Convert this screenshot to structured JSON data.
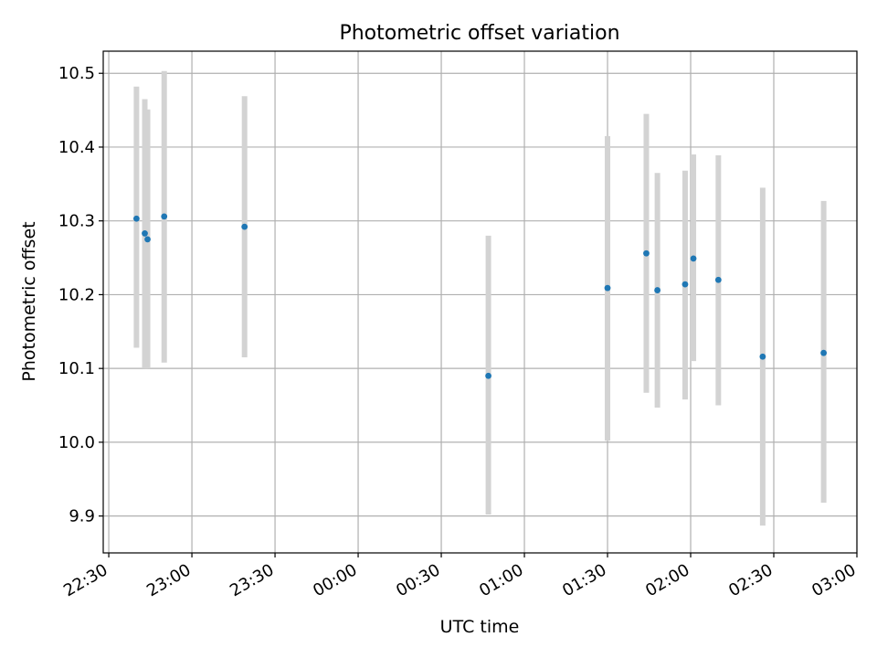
{
  "chart_data": {
    "type": "scatter",
    "title": "Photometric offset variation",
    "xlabel": "UTC time",
    "ylabel": "Photometric offset",
    "x_ticks": [
      "22:30",
      "23:00",
      "23:30",
      "00:00",
      "00:30",
      "01:00",
      "01:30",
      "02:00",
      "02:30",
      "03:00"
    ],
    "y_ticks": [
      "9.9",
      "10.0",
      "10.1",
      "10.2",
      "10.3",
      "10.4",
      "10.5"
    ],
    "ylim": [
      9.85,
      10.53
    ],
    "xlim": [
      "22:28",
      "03:00"
    ],
    "grid": true,
    "colors": {
      "point": "#1f77b4",
      "errorbar": "#d3d3d3",
      "grid": "#b0b0b0"
    },
    "points": [
      {
        "x": "22:40",
        "y": 10.303,
        "low": 10.128,
        "high": 10.482
      },
      {
        "x": "22:43",
        "y": 10.283,
        "low": 10.1,
        "high": 10.465
      },
      {
        "x": "22:44",
        "y": 10.275,
        "low": 10.1,
        "high": 10.451
      },
      {
        "x": "22:50",
        "y": 10.306,
        "low": 10.108,
        "high": 10.503
      },
      {
        "x": "23:19",
        "y": 10.292,
        "low": 10.115,
        "high": 10.469
      },
      {
        "x": "00:47",
        "y": 10.09,
        "low": 9.902,
        "high": 10.28
      },
      {
        "x": "01:30",
        "y": 10.209,
        "low": 10.002,
        "high": 10.415
      },
      {
        "x": "01:44",
        "y": 10.256,
        "low": 10.067,
        "high": 10.445
      },
      {
        "x": "01:48",
        "y": 10.206,
        "low": 10.047,
        "high": 10.365
      },
      {
        "x": "01:58",
        "y": 10.214,
        "low": 10.058,
        "high": 10.368
      },
      {
        "x": "02:01",
        "y": 10.249,
        "low": 10.11,
        "high": 10.39
      },
      {
        "x": "02:10",
        "y": 10.22,
        "low": 10.05,
        "high": 10.389
      },
      {
        "x": "02:26",
        "y": 10.116,
        "low": 9.887,
        "high": 10.345
      },
      {
        "x": "02:48",
        "y": 10.121,
        "low": 9.918,
        "high": 10.327
      }
    ]
  }
}
